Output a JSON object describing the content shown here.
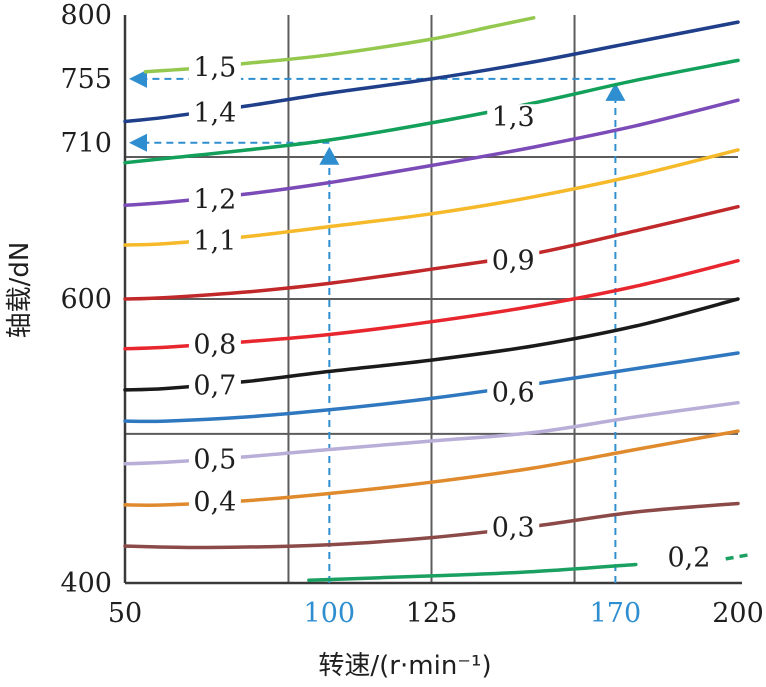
{
  "chart_data": {
    "type": "line",
    "title": "",
    "xlabel": "转速/(r·min⁻¹)",
    "ylabel": "轴载/dN",
    "xlim": [
      50,
      200
    ],
    "ylim": [
      400,
      800
    ],
    "x_ticks": [
      {
        "value": 50,
        "label": "50",
        "highlight": false
      },
      {
        "value": 100,
        "label": "100",
        "highlight": true
      },
      {
        "value": 125,
        "label": "125",
        "highlight": false
      },
      {
        "value": 170,
        "label": "170",
        "highlight": true
      },
      {
        "value": 200,
        "label": "200",
        "highlight": false
      }
    ],
    "y_ticks": [
      {
        "value": 400,
        "label": "400"
      },
      {
        "value": 600,
        "label": "600"
      },
      {
        "value": 710,
        "label": "710"
      },
      {
        "value": 755,
        "label": "755"
      },
      {
        "value": 800,
        "label": "800"
      }
    ],
    "vertical_gridlines": [
      90,
      125,
      160
    ],
    "horizontal_gridlines": [
      505,
      600,
      700
    ],
    "grid": true,
    "series": [
      {
        "name": "0,2",
        "color": "#1aa060",
        "x": [
          95,
          125,
          150,
          175
        ],
        "y": [
          402,
          405,
          408,
          413
        ],
        "label_at": [
          188,
          418
        ],
        "dashed_tail": {
          "x": [
            197,
            203
          ],
          "y": [
            417,
            420
          ]
        }
      },
      {
        "name": "0,3",
        "color": "#8b4a48",
        "x": [
          50,
          70,
          100,
          125,
          150,
          175,
          200
        ],
        "y": [
          426,
          425,
          427,
          432,
          440,
          450,
          456
        ],
        "label_at": [
          145,
          439
        ]
      },
      {
        "name": "0,4",
        "color": "#e08a2e",
        "x": [
          50,
          60,
          80,
          100,
          125,
          150,
          175,
          200
        ],
        "y": [
          455,
          455,
          458,
          463,
          471,
          481,
          494,
          507
        ],
        "label_at": [
          72,
          457
        ]
      },
      {
        "name": "0,5",
        "color": "#b8aed8",
        "x": [
          50,
          60,
          80,
          100,
          125,
          150,
          175,
          200
        ],
        "y": [
          484,
          485,
          489,
          494,
          500,
          506,
          517,
          527
        ],
        "label_at": [
          72,
          487
        ]
      },
      {
        "name": "0,6",
        "color": "#2f78c0",
        "x": [
          50,
          60,
          80,
          100,
          125,
          150,
          175,
          200
        ],
        "y": [
          514,
          514,
          517,
          522,
          530,
          540,
          551,
          562
        ],
        "label_at": [
          145,
          534
        ]
      },
      {
        "name": "0,7",
        "color": "#1a1a1a",
        "x": [
          50,
          60,
          80,
          100,
          125,
          150,
          175,
          200
        ],
        "y": [
          536,
          537,
          542,
          549,
          557,
          567,
          581,
          600
        ],
        "label_at": [
          72,
          539
        ]
      },
      {
        "name": "0,8",
        "color": "#e8262e",
        "x": [
          50,
          60,
          80,
          100,
          125,
          150,
          175,
          200
        ],
        "y": [
          565,
          566,
          570,
          575,
          584,
          595,
          609,
          627
        ],
        "label_at": [
          72,
          568
        ]
      },
      {
        "name": "0,9",
        "color": "#c0282a",
        "x": [
          50,
          60,
          80,
          100,
          125,
          150,
          175,
          200
        ],
        "y": [
          600,
          601,
          605,
          611,
          621,
          632,
          648,
          665
        ],
        "label_at": [
          145,
          627
        ]
      },
      {
        "name": "1,1",
        "color": "#f5b92a",
        "x": [
          50,
          60,
          80,
          100,
          125,
          150,
          175,
          200
        ],
        "y": [
          638,
          639,
          644,
          651,
          660,
          672,
          687,
          705
        ],
        "label_at": [
          72,
          641
        ]
      },
      {
        "name": "1,2",
        "color": "#7b4bb8",
        "x": [
          50,
          60,
          80,
          100,
          125,
          150,
          175,
          200
        ],
        "y": [
          666,
          668,
          674,
          682,
          694,
          707,
          722,
          740
        ],
        "label_at": [
          72,
          670
        ]
      },
      {
        "name": "1,3",
        "color": "#12a05a",
        "x": [
          50,
          60,
          80,
          100,
          125,
          150,
          175,
          200
        ],
        "y": [
          696,
          699,
          705,
          712,
          724,
          738,
          754,
          768
        ],
        "label_at": [
          145,
          728
        ]
      },
      {
        "name": "1,4",
        "color": "#1f3f8a",
        "x": [
          50,
          60,
          80,
          100,
          125,
          150,
          175,
          200
        ],
        "y": [
          725,
          728,
          736,
          745,
          755,
          767,
          781,
          795
        ],
        "label_at": [
          72,
          731
        ]
      },
      {
        "name": "1,5",
        "color": "#94c84e",
        "x": [
          55,
          60,
          70,
          80,
          100,
          125,
          140,
          150
        ],
        "y": [
          760,
          761,
          763,
          766,
          772,
          783,
          792,
          798
        ],
        "label_at": [
          72,
          763
        ]
      }
    ],
    "reference_lines": [
      {
        "color": "#2f8ed0",
        "x": [
          100,
          100,
          50
        ],
        "y": [
          400,
          710,
          710
        ],
        "arrow": "up-then-left"
      },
      {
        "color": "#2f8ed0",
        "x": [
          170,
          170,
          50
        ],
        "y": [
          400,
          755,
          755
        ],
        "arrow": "up-then-left"
      }
    ]
  }
}
